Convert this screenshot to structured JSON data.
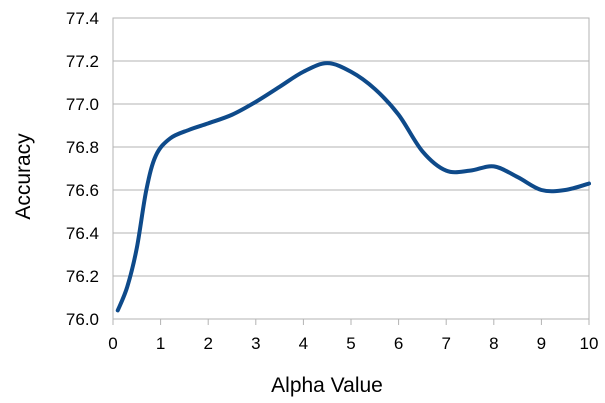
{
  "chart_data": {
    "type": "line",
    "xlabel": "Alpha Value",
    "ylabel": "Accuracy",
    "xlim": [
      0,
      10
    ],
    "ylim": [
      76.0,
      77.4
    ],
    "grid": true,
    "x_ticks": [
      "0",
      "1",
      "2",
      "3",
      "4",
      "5",
      "6",
      "7",
      "8",
      "9",
      "10"
    ],
    "y_ticks": [
      "76.0",
      "76.2",
      "76.4",
      "76.6",
      "76.8",
      "77.0",
      "77.2",
      "77.4"
    ],
    "series": [
      {
        "color": "#0e4a8a",
        "x": [
          0.1,
          0.3,
          0.5,
          0.7,
          0.9,
          1.2,
          1.6,
          2.0,
          2.5,
          3.0,
          3.5,
          4.0,
          4.5,
          5.0,
          5.5,
          6.0,
          6.5,
          7.0,
          7.5,
          8.0,
          8.5,
          9.0,
          9.5,
          10.0
        ],
        "y": [
          76.04,
          76.15,
          76.33,
          76.6,
          76.76,
          76.84,
          76.88,
          76.91,
          76.95,
          77.01,
          77.08,
          77.15,
          77.19,
          77.15,
          77.07,
          76.95,
          76.78,
          76.69,
          76.69,
          76.71,
          76.66,
          76.6,
          76.6,
          76.63
        ]
      }
    ]
  }
}
